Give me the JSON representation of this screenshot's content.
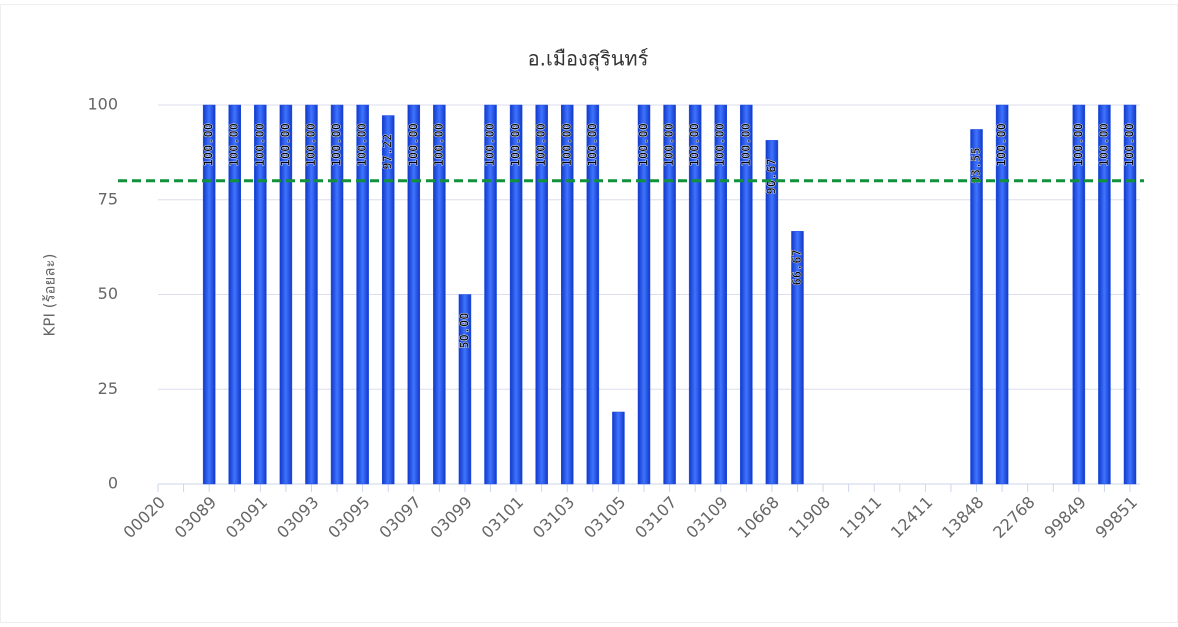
{
  "chart_data": {
    "type": "bar",
    "title": "อ.เมืองสุรินทร์",
    "y_label": "KPI (ร้อยละ)",
    "categories": [
      "00020",
      null,
      "03089",
      null,
      "03091",
      null,
      "03093",
      null,
      "03095",
      null,
      "03097",
      null,
      "03099",
      null,
      "03101",
      null,
      "03103",
      null,
      "03105",
      null,
      "03107",
      null,
      "03109",
      null,
      "10668",
      null,
      "11908",
      null,
      "11911",
      null,
      "12411",
      null,
      "13848",
      null,
      "22768",
      null,
      "99849",
      null,
      "99851"
    ],
    "values": [
      0,
      0,
      100,
      100,
      100,
      100,
      100,
      100,
      100,
      97.22,
      100,
      100,
      50,
      100,
      100,
      100,
      100,
      100,
      19,
      100,
      100,
      100,
      100,
      100,
      90.67,
      66.67,
      0,
      0,
      0,
      0,
      0,
      0,
      93.55,
      100,
      0,
      0,
      100,
      100,
      100
    ],
    "value_labels": [
      null,
      null,
      "100.00",
      "100.00",
      "100.00",
      "100.00",
      "100.00",
      "100.00",
      "100.00",
      "97.22",
      "100.00",
      "100.00",
      "50.00",
      "100.00",
      "100.00",
      "100.00",
      "100.00",
      "100.00",
      null,
      "100.00",
      "100.00",
      "100.00",
      "100.00",
      "100.00",
      "90.67",
      "66.67",
      null,
      null,
      null,
      null,
      null,
      null,
      "93.55",
      "100.00",
      null,
      null,
      "100.00",
      "100.00",
      "100.00"
    ],
    "color": "#1c4de0",
    "threshold": 80,
    "threshold_color": "#11913a",
    "ylim": [
      0,
      100
    ],
    "yticks": [
      0,
      25,
      50,
      75,
      100
    ],
    "grid": true
  }
}
